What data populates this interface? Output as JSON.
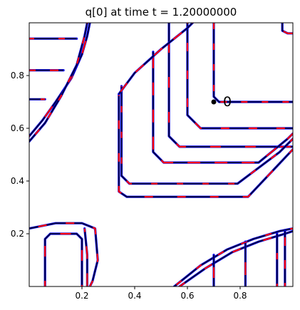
{
  "chart_data": {
    "type": "line",
    "title": "q[0] at time t =     1.20000000",
    "xlabel": "",
    "ylabel": "",
    "xlim": [
      0.0,
      1.0
    ],
    "ylim": [
      0.0,
      1.0
    ],
    "xticks": [
      0.2,
      0.4,
      0.6,
      0.8
    ],
    "xtick_labels": [
      "0.2",
      "0.4",
      "0.6",
      "0.8"
    ],
    "yticks": [
      0.2,
      0.4,
      0.6,
      0.8
    ],
    "ytick_labels": [
      "0.2",
      "0.4",
      "0.6",
      "0.8"
    ],
    "grid": false,
    "colors": {
      "contour_dark": "#000033",
      "contour_blue": "#0000ff",
      "contour_red": "#ff0000",
      "axes": "#000000"
    },
    "annotation": {
      "label": "0",
      "x": 0.7,
      "y": 0.7
    },
    "series": [
      {
        "points": [
          [
            0.7,
            1.0
          ],
          [
            0.7,
            0.72
          ],
          [
            0.72,
            0.7
          ],
          [
            1.0,
            0.7
          ]
        ]
      },
      {
        "points": [
          [
            0.6,
            1.0
          ],
          [
            0.6,
            0.65
          ],
          [
            0.65,
            0.6
          ],
          [
            1.0,
            0.6
          ]
        ]
      },
      {
        "points": [
          [
            0.53,
            1.0
          ],
          [
            0.53,
            0.57
          ],
          [
            0.57,
            0.53
          ],
          [
            1.0,
            0.53
          ]
        ]
      },
      {
        "points": [
          [
            0.47,
            0.89
          ],
          [
            0.47,
            0.51
          ],
          [
            0.51,
            0.47
          ],
          [
            0.87,
            0.47
          ],
          [
            0.98,
            0.56
          ],
          [
            1.0,
            0.58
          ]
        ]
      },
      {
        "points": [
          [
            0.35,
            0.76
          ],
          [
            0.35,
            0.42
          ],
          [
            0.38,
            0.39
          ],
          [
            0.79,
            0.39
          ],
          [
            0.95,
            0.51
          ],
          [
            1.0,
            0.56
          ]
        ]
      },
      {
        "points": [
          [
            0.34,
            0.73
          ],
          [
            0.34,
            0.36
          ],
          [
            0.37,
            0.34
          ],
          [
            0.83,
            0.34
          ],
          [
            1.0,
            0.52
          ]
        ]
      },
      {
        "points": [
          [
            0.34,
            0.73
          ],
          [
            0.4,
            0.81
          ],
          [
            0.5,
            0.9
          ],
          [
            0.6,
            0.98
          ],
          [
            0.62,
            1.0
          ]
        ]
      },
      {
        "points": [
          [
            0.96,
            1.0
          ],
          [
            0.96,
            0.97
          ],
          [
            0.98,
            0.96
          ],
          [
            1.0,
            0.96
          ]
        ]
      },
      {
        "points": [
          [
            0.0,
            0.94
          ],
          [
            0.18,
            0.94
          ]
        ]
      },
      {
        "points": [
          [
            0.0,
            0.82
          ],
          [
            0.13,
            0.82
          ]
        ]
      },
      {
        "points": [
          [
            0.0,
            0.71
          ],
          [
            0.06,
            0.71
          ]
        ]
      },
      {
        "points": [
          [
            0.0,
            0.57
          ],
          [
            0.05,
            0.63
          ],
          [
            0.1,
            0.7
          ],
          [
            0.16,
            0.79
          ],
          [
            0.2,
            0.88
          ],
          [
            0.22,
            0.95
          ],
          [
            0.23,
            1.0
          ]
        ]
      },
      {
        "points": [
          [
            0.0,
            0.55
          ],
          [
            0.06,
            0.62
          ],
          [
            0.12,
            0.72
          ],
          [
            0.18,
            0.84
          ],
          [
            0.21,
            0.95
          ],
          [
            0.22,
            1.0
          ]
        ]
      },
      {
        "points": [
          [
            0.0,
            0.22
          ],
          [
            0.1,
            0.24
          ],
          [
            0.2,
            0.24
          ],
          [
            0.25,
            0.22
          ],
          [
            0.26,
            0.1
          ],
          [
            0.24,
            0.02
          ],
          [
            0.23,
            0.0
          ]
        ]
      },
      {
        "points": [
          [
            0.06,
            0.0
          ],
          [
            0.06,
            0.18
          ],
          [
            0.08,
            0.2
          ],
          [
            0.18,
            0.2
          ],
          [
            0.2,
            0.18
          ],
          [
            0.2,
            0.0
          ]
        ]
      },
      {
        "points": [
          [
            0.21,
            0.22
          ],
          [
            0.22,
            0.12
          ],
          [
            0.22,
            0.0
          ]
        ]
      },
      {
        "points": [
          [
            0.55,
            0.0
          ],
          [
            0.65,
            0.08
          ],
          [
            0.75,
            0.14
          ],
          [
            0.85,
            0.18
          ],
          [
            0.95,
            0.21
          ],
          [
            1.0,
            0.22
          ]
        ]
      },
      {
        "points": [
          [
            0.57,
            0.0
          ],
          [
            0.67,
            0.07
          ],
          [
            0.77,
            0.13
          ],
          [
            0.87,
            0.17
          ],
          [
            0.97,
            0.2
          ],
          [
            1.0,
            0.21
          ]
        ]
      },
      {
        "points": [
          [
            0.7,
            0.0
          ],
          [
            0.7,
            0.12
          ]
        ]
      },
      {
        "points": [
          [
            0.82,
            0.0
          ],
          [
            0.82,
            0.17
          ]
        ]
      },
      {
        "points": [
          [
            0.94,
            0.0
          ],
          [
            0.94,
            0.2
          ]
        ]
      },
      {
        "points": [
          [
            0.97,
            0.0
          ],
          [
            0.97,
            0.21
          ]
        ]
      }
    ]
  }
}
